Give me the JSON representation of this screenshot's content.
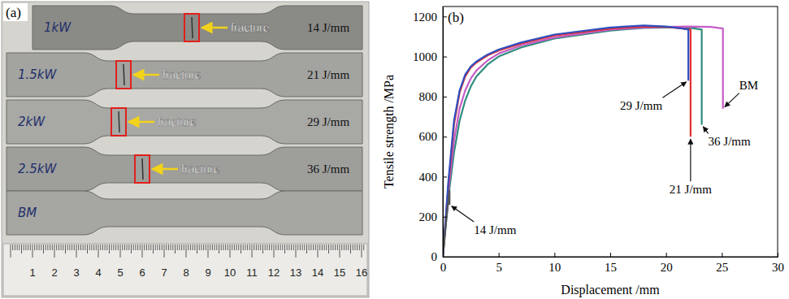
{
  "photo": {
    "label": "(a)",
    "specimens": [
      {
        "tag": "1kW",
        "note": "fracture",
        "energy": "14 J/mm"
      },
      {
        "tag": "1.5kW",
        "note": "fracture",
        "energy": "21 J/mm"
      },
      {
        "tag": "2kW",
        "note": "fracture",
        "energy": "29 J/mm"
      },
      {
        "tag": "2.5kW",
        "note": "fracture",
        "energy": "36 J/mm"
      },
      {
        "tag": "BM"
      }
    ],
    "ruler": [
      1,
      2,
      3,
      4,
      5,
      6,
      7,
      8,
      9,
      10,
      11,
      12,
      13,
      14,
      15,
      16
    ]
  },
  "chart_data": {
    "type": "line",
    "panel": "(b)",
    "x_label": "Displacement /mm",
    "y_label": "Tensile strength /MPa",
    "xlim": [
      0,
      30
    ],
    "xticks": [
      0,
      5,
      10,
      15,
      20,
      25,
      30
    ],
    "ylim": [
      0,
      1250
    ],
    "yticks": [
      0,
      200,
      400,
      600,
      800,
      1000,
      1200
    ],
    "grid": false,
    "series": [
      {
        "name": "36 J/mm",
        "color": "#2e8b7e",
        "x": [
          0,
          0.5,
          1,
          1.5,
          2,
          2.5,
          3,
          4,
          5,
          7,
          10,
          15,
          18,
          20,
          22,
          23.2,
          23.2
        ],
        "values": [
          0,
          300,
          520,
          680,
          780,
          850,
          900,
          960,
          1000,
          1045,
          1090,
          1130,
          1143,
          1145,
          1145,
          1135,
          660
        ]
      },
      {
        "name": "BM",
        "color": "#c65cc6",
        "x": [
          0,
          0.5,
          1,
          1.5,
          2,
          2.5,
          3,
          4,
          5,
          7,
          10,
          15,
          18,
          20,
          22,
          24,
          25.1,
          25.1
        ],
        "values": [
          0,
          330,
          580,
          740,
          830,
          890,
          930,
          980,
          1015,
          1055,
          1095,
          1135,
          1145,
          1148,
          1150,
          1148,
          1140,
          740
        ]
      },
      {
        "name": "21 J/mm",
        "color": "#e03030",
        "x": [
          0,
          0.5,
          1,
          1.5,
          2,
          2.5,
          3,
          4,
          5,
          7,
          10,
          15,
          18,
          20,
          21.5,
          22.2,
          22.2
        ],
        "values": [
          0,
          360,
          660,
          820,
          900,
          945,
          970,
          1005,
          1030,
          1065,
          1105,
          1140,
          1150,
          1148,
          1140,
          1135,
          600
        ]
      },
      {
        "name": "29 J/mm",
        "color": "#3050c0",
        "x": [
          0,
          0.5,
          1,
          1.5,
          2,
          2.5,
          3,
          4,
          5,
          7,
          10,
          15,
          18,
          20,
          21.5,
          22,
          22
        ],
        "values": [
          0,
          380,
          680,
          830,
          910,
          950,
          975,
          1010,
          1035,
          1070,
          1110,
          1145,
          1155,
          1150,
          1140,
          1135,
          880
        ]
      },
      {
        "name": "14 J/mm",
        "color": "#555555",
        "x": [
          0,
          0.3,
          0.6,
          0.6
        ],
        "values": [
          0,
          180,
          330,
          260
        ]
      }
    ]
  }
}
